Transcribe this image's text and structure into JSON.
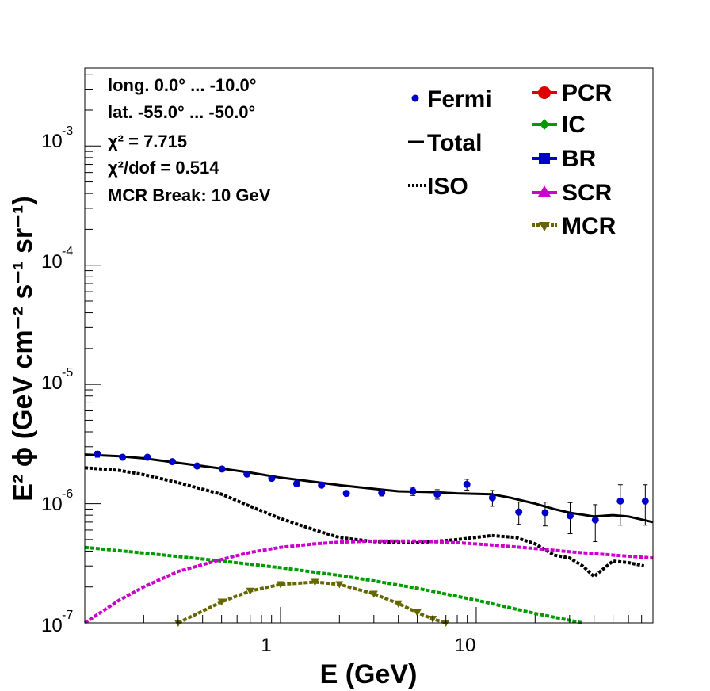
{
  "chart_data": {
    "type": "line",
    "xlabel": "E (GeV)",
    "ylabel": "E² ϕ (GeV cm⁻² s⁻¹ sr⁻¹)",
    "xscale": "log",
    "yscale": "log",
    "xlim": [
      0.1,
      80
    ],
    "ylim": [
      1e-07,
      0.0045
    ],
    "x_tick_labels": [
      "1",
      "10"
    ],
    "y_tick_labels": [
      {
        "base": "10",
        "exp": "-7"
      },
      {
        "base": "10",
        "exp": "-6"
      },
      {
        "base": "10",
        "exp": "-5"
      },
      {
        "base": "10",
        "exp": "-4"
      },
      {
        "base": "10",
        "exp": "-3"
      }
    ],
    "annotations": [
      "long. 0.0° ... -10.0°",
      "lat. -55.0° ... -50.0°",
      "χ² = 7.715",
      "χ²/dof = 0.514",
      "MCR Break: 10 GeV"
    ],
    "legend_position": "top-right",
    "legend": [
      "Fermi",
      "Total",
      "ISO",
      "PCR",
      "IC",
      "BR",
      "SCR",
      "MCR"
    ],
    "fermi": {
      "name": "Fermi",
      "color": "#0000cc",
      "x": [
        0.116,
        0.156,
        0.209,
        0.28,
        0.375,
        0.503,
        0.674,
        0.902,
        1.21,
        1.62,
        2.17,
        3.29,
        4.75,
        6.32,
        8.96,
        12.1,
        16.5,
        22.5,
        30.2,
        40.6,
        54.5,
        73.1
      ],
      "y": [
        2.6e-06,
        2.45e-06,
        2.45e-06,
        2.25e-06,
        2.07e-06,
        1.95e-06,
        1.77e-06,
        1.63e-06,
        1.47e-06,
        1.43e-06,
        1.22e-06,
        1.23e-06,
        1.27e-06,
        1.2e-06,
        1.45e-06,
        1.12e-06,
        8.5e-07,
        8.4e-07,
        7.9e-07,
        7.3e-07,
        1.05e-06,
        1.05e-06
      ],
      "y_err": [
        1.5e-07,
        1e-07,
        1e-07,
        1e-07,
        8e-08,
        8e-08,
        7e-08,
        6e-08,
        6e-08,
        6e-08,
        6e-08,
        7e-08,
        1e-07,
        1.1e-07,
        1.5e-07,
        1.7e-07,
        1.8e-07,
        1.9e-07,
        2.3e-07,
        2.5e-07,
        3.9e-07,
        3.9e-07
      ]
    },
    "series": [
      {
        "name": "Total",
        "color": "#000000",
        "style": "solid",
        "x": [
          0.1,
          0.15,
          0.2,
          0.3,
          0.5,
          0.7,
          1.0,
          1.5,
          2.0,
          3.0,
          4.0,
          6.0,
          8.0,
          12.0,
          15.0,
          20.0,
          25.0,
          30.0,
          40.0,
          50.0,
          60.0,
          80.0
        ],
        "y": [
          2.58e-06,
          2.5e-06,
          2.4e-06,
          2.2e-06,
          1.97e-06,
          1.82e-06,
          1.65e-06,
          1.52e-06,
          1.43e-06,
          1.33e-06,
          1.27e-06,
          1.25e-06,
          1.22e-06,
          1.2e-06,
          1.12e-06,
          1e-06,
          9e-07,
          8.4e-07,
          7.8e-07,
          8e-07,
          7.8e-07,
          7e-07
        ]
      },
      {
        "name": "ISO",
        "color": "#000000",
        "style": "dotted",
        "x": [
          0.1,
          0.15,
          0.2,
          0.3,
          0.5,
          0.7,
          1.0,
          1.5,
          2.0,
          3.0,
          5.0,
          8.0,
          12.0,
          16.0,
          20.0,
          25.0,
          30.0,
          35.0,
          40.0,
          50.0,
          60.0,
          72.0
        ],
        "y": [
          2e-06,
          1.9e-06,
          1.75e-06,
          1.5e-06,
          1.2e-06,
          9.5e-07,
          7.5e-07,
          6e-07,
          5.2e-07,
          4.8e-07,
          4.7e-07,
          5e-07,
          5.4e-07,
          5.2e-07,
          4.6e-07,
          3.7e-07,
          3.5e-07,
          3e-07,
          2.45e-07,
          3.3e-07,
          3.2e-07,
          3e-07
        ]
      },
      {
        "name": "PCR",
        "color": "#dd0000",
        "style": "dashed",
        "x": [],
        "y": []
      },
      {
        "name": "IC",
        "color": "#009900",
        "style": "dashed",
        "x": [
          0.1,
          0.2,
          0.3,
          0.5,
          1.0,
          2.0,
          3.0,
          5.0,
          10.0,
          20.0,
          35.0
        ],
        "y": [
          4.3e-07,
          3.85e-07,
          3.6e-07,
          3.3e-07,
          2.9e-07,
          2.5e-07,
          2.25e-07,
          1.95e-07,
          1.55e-07,
          1.2e-07,
          9.8e-08
        ]
      },
      {
        "name": "BR",
        "color": "#0000cc",
        "style": "dashed",
        "x": [],
        "y": []
      },
      {
        "name": "SCR",
        "color": "#cc00cc",
        "style": "dashed",
        "x": [
          0.1,
          0.15,
          0.2,
          0.3,
          0.5,
          0.7,
          1.0,
          1.5,
          2.0,
          3.0,
          5.0,
          8.0,
          12.0,
          20.0,
          30.0,
          50.0,
          80.0
        ],
        "y": [
          1e-07,
          1.55e-07,
          2e-07,
          2.7e-07,
          3.4e-07,
          3.9e-07,
          4.3e-07,
          4.6e-07,
          4.75e-07,
          4.85e-07,
          4.85e-07,
          4.7e-07,
          4.5e-07,
          4.2e-07,
          3.95e-07,
          3.7e-07,
          3.5e-07
        ]
      },
      {
        "name": "MCR",
        "color": "#666600",
        "style": "dashed",
        "x": [
          0.3,
          0.5,
          0.7,
          1.0,
          1.5,
          2.0,
          3.0,
          4.0,
          5.0,
          6.0,
          7.0
        ],
        "y": [
          1e-07,
          1.5e-07,
          1.85e-07,
          2.1e-07,
          2.2e-07,
          2.1e-07,
          1.75e-07,
          1.45e-07,
          1.22e-07,
          1.08e-07,
          1e-07
        ]
      }
    ]
  }
}
